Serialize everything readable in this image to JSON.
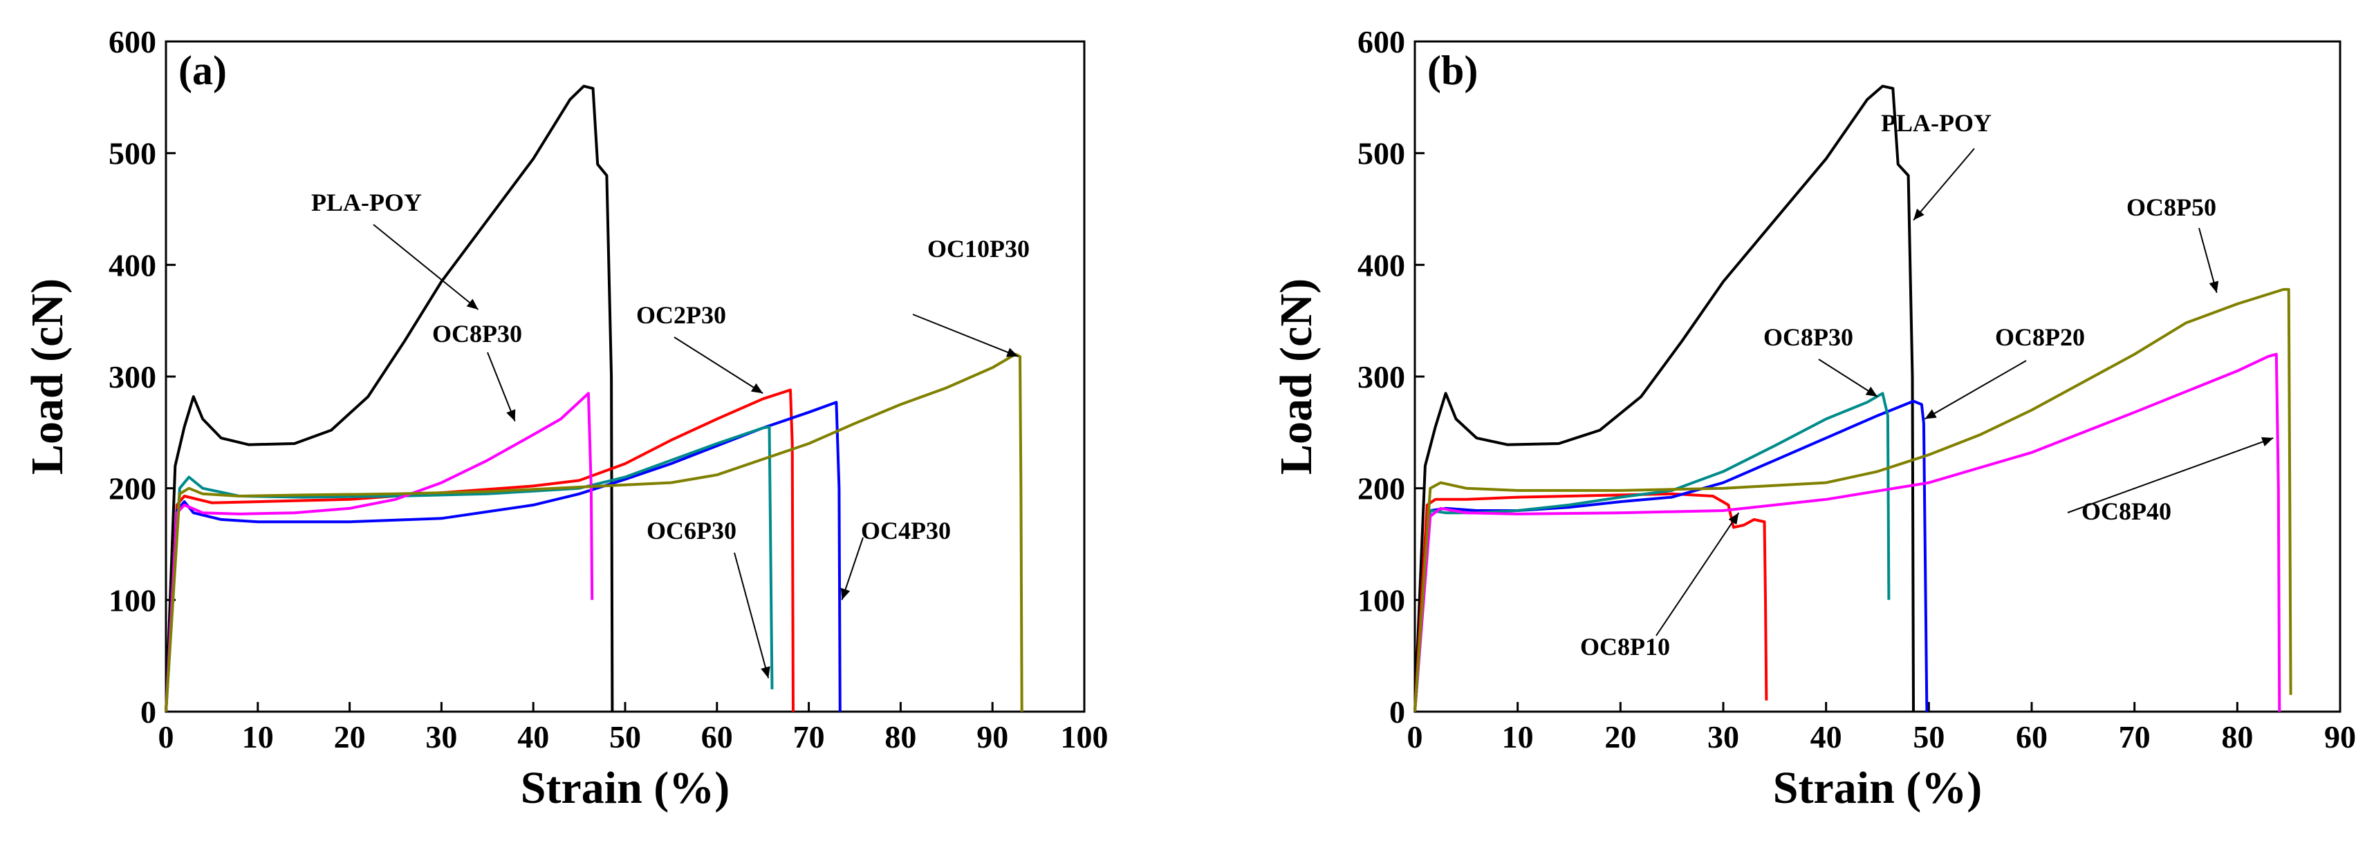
{
  "chart_data": [
    {
      "type": "line",
      "panel": "(a)",
      "xlabel": "Strain (%)",
      "ylabel": "Load (cN)",
      "xlim": [
        0,
        100
      ],
      "ylim": [
        0,
        600
      ],
      "xticks": [
        0,
        10,
        20,
        30,
        40,
        50,
        60,
        70,
        80,
        90,
        100
      ],
      "yticks": [
        0,
        100,
        200,
        300,
        400,
        500,
        600
      ],
      "series": [
        {
          "name": "PLA-POY",
          "color": "#000000",
          "points": [
            [
              0,
              0
            ],
            [
              1,
              220
            ],
            [
              2,
              255
            ],
            [
              3,
              282
            ],
            [
              4,
              262
            ],
            [
              6,
              245
            ],
            [
              9,
              239
            ],
            [
              14,
              240
            ],
            [
              18,
              252
            ],
            [
              22,
              282
            ],
            [
              26,
              332
            ],
            [
              30,
              385
            ],
            [
              35,
              440
            ],
            [
              40,
              495
            ],
            [
              44,
              548
            ],
            [
              45.5,
              560
            ],
            [
              46.5,
              558
            ],
            [
              47,
              490
            ],
            [
              48,
              480
            ],
            [
              48.5,
              300
            ],
            [
              48.6,
              0
            ]
          ]
        },
        {
          "name": "OC2P30",
          "color": "#ff0000",
          "points": [
            [
              0,
              0
            ],
            [
              1.2,
              185
            ],
            [
              2,
              193
            ],
            [
              5,
              187
            ],
            [
              10,
              188
            ],
            [
              20,
              190
            ],
            [
              30,
              196
            ],
            [
              40,
              202
            ],
            [
              45,
              207
            ],
            [
              50,
              222
            ],
            [
              55,
              243
            ],
            [
              60,
              262
            ],
            [
              65,
              280
            ],
            [
              68,
              288
            ],
            [
              68.2,
              240
            ],
            [
              68.3,
              0
            ]
          ]
        },
        {
          "name": "OC4P30",
          "color": "#0000ff",
          "points": [
            [
              0,
              0
            ],
            [
              1.2,
              180
            ],
            [
              2,
              188
            ],
            [
              3,
              178
            ],
            [
              6,
              172
            ],
            [
              10,
              170
            ],
            [
              20,
              170
            ],
            [
              30,
              173
            ],
            [
              40,
              185
            ],
            [
              45,
              195
            ],
            [
              50,
              208
            ],
            [
              55,
              222
            ],
            [
              60,
              238
            ],
            [
              65,
              254
            ],
            [
              70,
              268
            ],
            [
              73,
              277
            ],
            [
              73.3,
              200
            ],
            [
              73.4,
              0
            ]
          ]
        },
        {
          "name": "OC6P30",
          "color": "#008b8b",
          "points": [
            [
              0,
              0
            ],
            [
              1.5,
              200
            ],
            [
              2.5,
              210
            ],
            [
              4,
              200
            ],
            [
              8,
              193
            ],
            [
              15,
              192
            ],
            [
              25,
              193
            ],
            [
              35,
              195
            ],
            [
              45,
              200
            ],
            [
              50,
              210
            ],
            [
              55,
              225
            ],
            [
              60,
              240
            ],
            [
              65,
              254
            ],
            [
              65.7,
              255
            ],
            [
              65.8,
              180
            ],
            [
              66,
              20
            ]
          ]
        },
        {
          "name": "OC8P30",
          "color": "#ff00ff",
          "points": [
            [
              0,
              0
            ],
            [
              1.2,
              178
            ],
            [
              2,
              185
            ],
            [
              4,
              178
            ],
            [
              8,
              177
            ],
            [
              14,
              178
            ],
            [
              20,
              182
            ],
            [
              25,
              190
            ],
            [
              30,
              205
            ],
            [
              35,
              225
            ],
            [
              40,
              248
            ],
            [
              43,
              262
            ],
            [
              46,
              285
            ],
            [
              46.3,
              200
            ],
            [
              46.4,
              100
            ]
          ]
        },
        {
          "name": "OC10P30",
          "color": "#808000",
          "points": [
            [
              0,
              0
            ],
            [
              1.5,
              195
            ],
            [
              2.5,
              200
            ],
            [
              4,
              195
            ],
            [
              8,
              193
            ],
            [
              15,
              194
            ],
            [
              25,
              195
            ],
            [
              35,
              197
            ],
            [
              45,
              201
            ],
            [
              55,
              205
            ],
            [
              60,
              212
            ],
            [
              65,
              226
            ],
            [
              70,
              240
            ],
            [
              75,
              258
            ],
            [
              80,
              275
            ],
            [
              85,
              290
            ],
            [
              90,
              308
            ],
            [
              92.5,
              320
            ],
            [
              93,
              318
            ],
            [
              93.1,
              200
            ],
            [
              93.2,
              0
            ]
          ]
        }
      ],
      "annotations": [
        {
          "text": "PLA-POY",
          "target": [
            34,
            360
          ]
        },
        {
          "text": "OC8P30",
          "target": [
            38,
            260
          ]
        },
        {
          "text": "OC2P30",
          "target": [
            65,
            285
          ]
        },
        {
          "text": "OC6P30",
          "target": [
            65.6,
            30
          ]
        },
        {
          "text": "OC4P30",
          "target": [
            73.6,
            100
          ]
        },
        {
          "text": "OC10P30",
          "target": [
            92.8,
            318
          ]
        }
      ]
    },
    {
      "type": "line",
      "panel": "(b)",
      "xlabel": "Strain (%)",
      "ylabel": "Load (cN)",
      "xlim": [
        0,
        90
      ],
      "ylim": [
        0,
        600
      ],
      "xticks": [
        0,
        10,
        20,
        30,
        40,
        50,
        60,
        70,
        80,
        90
      ],
      "yticks": [
        0,
        100,
        200,
        300,
        400,
        500,
        600
      ],
      "series": [
        {
          "name": "PLA-POY",
          "color": "#000000",
          "points": [
            [
              0,
              0
            ],
            [
              1,
              220
            ],
            [
              2,
              255
            ],
            [
              3,
              285
            ],
            [
              4,
              262
            ],
            [
              6,
              245
            ],
            [
              9,
              239
            ],
            [
              14,
              240
            ],
            [
              18,
              252
            ],
            [
              22,
              282
            ],
            [
              26,
              332
            ],
            [
              30,
              385
            ],
            [
              35,
              440
            ],
            [
              40,
              495
            ],
            [
              44,
              548
            ],
            [
              45.5,
              560
            ],
            [
              46.5,
              558
            ],
            [
              47,
              490
            ],
            [
              48,
              480
            ],
            [
              48.4,
              300
            ],
            [
              48.5,
              0
            ]
          ]
        },
        {
          "name": "OC8P10",
          "color": "#ff0000",
          "points": [
            [
              0,
              0
            ],
            [
              1.2,
              185
            ],
            [
              2,
              190
            ],
            [
              5,
              190
            ],
            [
              10,
              192
            ],
            [
              15,
              193
            ],
            [
              20,
              194
            ],
            [
              25,
              195
            ],
            [
              29,
              193
            ],
            [
              30.5,
              185
            ],
            [
              31,
              165
            ],
            [
              32,
              167
            ],
            [
              33,
              172
            ],
            [
              34,
              170
            ],
            [
              34.1,
              100
            ],
            [
              34.2,
              10
            ]
          ]
        },
        {
          "name": "OC8P20",
          "color": "#0000ff",
          "points": [
            [
              0,
              0
            ],
            [
              1.5,
              180
            ],
            [
              3,
              182
            ],
            [
              6,
              180
            ],
            [
              10,
              180
            ],
            [
              15,
              183
            ],
            [
              20,
              188
            ],
            [
              25,
              192
            ],
            [
              30,
              205
            ],
            [
              35,
              225
            ],
            [
              40,
              245
            ],
            [
              45,
              265
            ],
            [
              48.5,
              278
            ],
            [
              49.3,
              275
            ],
            [
              49.5,
              258
            ],
            [
              49.8,
              0
            ]
          ]
        },
        {
          "name": "OC8P30",
          "color": "#008b8b",
          "points": [
            [
              0,
              0
            ],
            [
              1.5,
              180
            ],
            [
              3,
              178
            ],
            [
              6,
              178
            ],
            [
              10,
              180
            ],
            [
              15,
              185
            ],
            [
              20,
              192
            ],
            [
              25,
              198
            ],
            [
              30,
              215
            ],
            [
              35,
              238
            ],
            [
              40,
              262
            ],
            [
              44,
              277
            ],
            [
              45.5,
              285
            ],
            [
              46,
              265
            ],
            [
              46.1,
              100
            ]
          ]
        },
        {
          "name": "OC8P40",
          "color": "#ff00ff",
          "points": [
            [
              0,
              0
            ],
            [
              1.5,
              175
            ],
            [
              2.5,
              182
            ],
            [
              5,
              178
            ],
            [
              10,
              177
            ],
            [
              20,
              178
            ],
            [
              30,
              180
            ],
            [
              40,
              190
            ],
            [
              50,
              205
            ],
            [
              60,
              232
            ],
            [
              70,
              268
            ],
            [
              80,
              305
            ],
            [
              83,
              318
            ],
            [
              83.8,
              320
            ],
            [
              84,
              200
            ],
            [
              84.1,
              0
            ]
          ]
        },
        {
          "name": "OC8P50",
          "color": "#808000",
          "points": [
            [
              0,
              0
            ],
            [
              1.5,
              200
            ],
            [
              2.5,
              205
            ],
            [
              5,
              200
            ],
            [
              10,
              198
            ],
            [
              20,
              198
            ],
            [
              30,
              200
            ],
            [
              40,
              205
            ],
            [
              45,
              215
            ],
            [
              50,
              230
            ],
            [
              55,
              248
            ],
            [
              60,
              270
            ],
            [
              65,
              295
            ],
            [
              70,
              320
            ],
            [
              75,
              348
            ],
            [
              80,
              365
            ],
            [
              84.5,
              378
            ],
            [
              85,
              378
            ],
            [
              85.1,
              200
            ],
            [
              85.2,
              15
            ]
          ]
        }
      ],
      "annotations": [
        {
          "text": "PLA-POY",
          "target": [
            48.5,
            440
          ]
        },
        {
          "text": "OC8P50",
          "target": [
            78,
            375
          ]
        },
        {
          "text": "OC8P30",
          "target": [
            45,
            282
          ]
        },
        {
          "text": "OC8P20",
          "target": [
            49.6,
            262
          ]
        },
        {
          "text": "OC8P40",
          "target": [
            83.5,
            245
          ]
        },
        {
          "text": "OC8P10",
          "target": [
            31.5,
            178
          ]
        }
      ]
    }
  ]
}
